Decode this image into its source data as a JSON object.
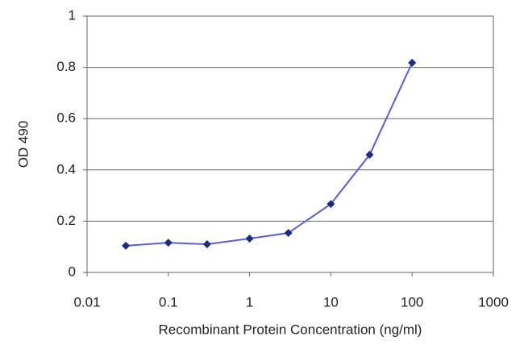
{
  "chart_data": {
    "type": "line",
    "x_label": "Recombinant Protein Concentration (ng/ml)",
    "y_label": "OD 490",
    "x": [
      0.03,
      0.1,
      0.3,
      1,
      3,
      10,
      30,
      100
    ],
    "series": [
      {
        "color": "#5b5fd0",
        "marker_color": "#1c2a84",
        "values": [
          0.104,
          0.116,
          0.11,
          0.132,
          0.154,
          0.267,
          0.459,
          0.818
        ]
      }
    ],
    "xlog": true,
    "xlim": [
      0.01,
      1000
    ],
    "xticks": [
      0.01,
      0.1,
      1,
      10,
      100,
      1000
    ],
    "ylim": [
      0,
      1
    ],
    "yticks": [
      0,
      0.2,
      0.4,
      0.6,
      0.8,
      1
    ],
    "grid": true
  }
}
